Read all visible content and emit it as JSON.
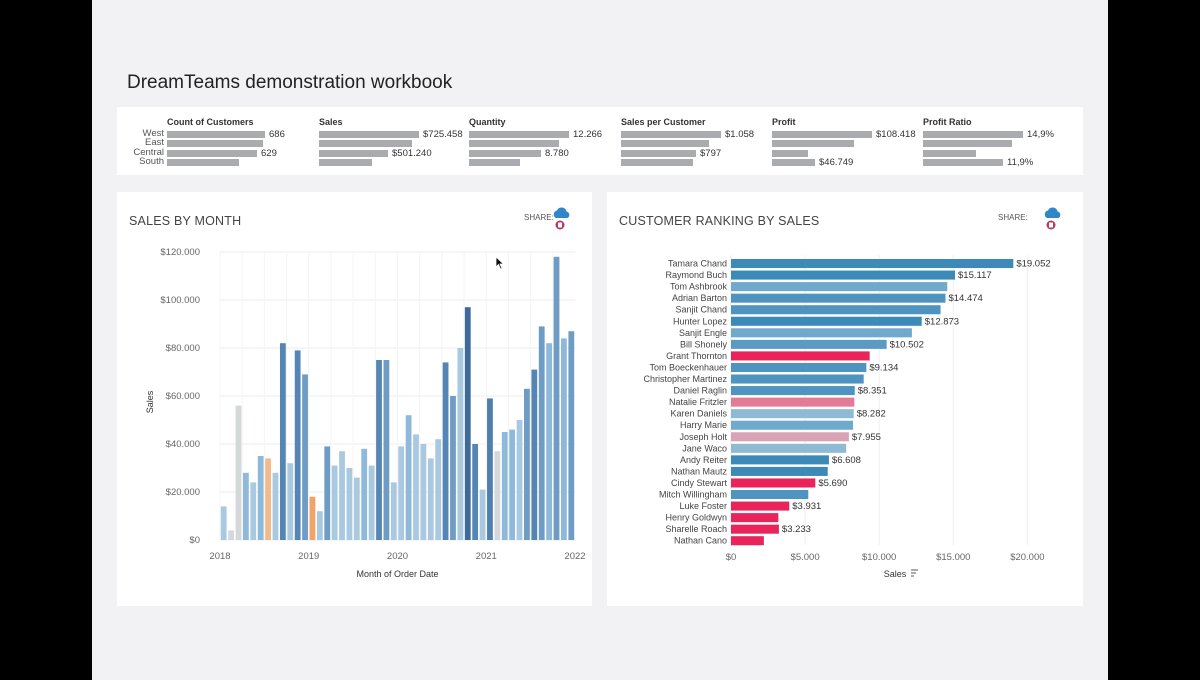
{
  "title": "DreamTeams demonstration workbook",
  "kpis": [
    {
      "title": "Count of Customers",
      "rows": [
        {
          "frac": 0.98,
          "label": "686"
        },
        {
          "frac": 0.96,
          "label": ""
        },
        {
          "frac": 0.9,
          "label": "629"
        },
        {
          "frac": 0.72,
          "label": ""
        }
      ]
    },
    {
      "title": "Sales",
      "rows": [
        {
          "frac": 1.0,
          "label": "$725.458"
        },
        {
          "frac": 0.93,
          "label": ""
        },
        {
          "frac": 0.69,
          "label": "$501.240"
        },
        {
          "frac": 0.53,
          "label": ""
        }
      ]
    },
    {
      "title": "Quantity",
      "rows": [
        {
          "frac": 1.0,
          "label": "12.266"
        },
        {
          "frac": 0.9,
          "label": ""
        },
        {
          "frac": 0.72,
          "label": "8.780"
        },
        {
          "frac": 0.51,
          "label": ""
        }
      ]
    },
    {
      "title": "Sales per Customer",
      "rows": [
        {
          "frac": 1.0,
          "label": "$1.058"
        },
        {
          "frac": 0.88,
          "label": ""
        },
        {
          "frac": 0.75,
          "label": "$797"
        },
        {
          "frac": 0.72,
          "label": ""
        }
      ]
    },
    {
      "title": "Profit",
      "rows": [
        {
          "frac": 1.0,
          "label": "$108.418"
        },
        {
          "frac": 0.82,
          "label": ""
        },
        {
          "frac": 0.36,
          "label": ""
        },
        {
          "frac": 0.43,
          "label": "$46.749"
        }
      ]
    },
    {
      "title": "Profit Ratio",
      "rows": [
        {
          "frac": 1.0,
          "label": "14,9%"
        },
        {
          "frac": 0.89,
          "label": ""
        },
        {
          "frac": 0.53,
          "label": ""
        },
        {
          "frac": 0.8,
          "label": "11,9%"
        }
      ]
    }
  ],
  "regions": [
    "West",
    "East",
    "Central",
    "South"
  ],
  "left_panel": {
    "title": "SALES BY MONTH",
    "share": "SHARE:"
  },
  "right_panel": {
    "title": "CUSTOMER RANKING BY SALES",
    "share": "SHARE:"
  },
  "chart_data": [
    {
      "type": "bar",
      "title": "SALES BY MONTH",
      "xlabel": "Month of Order Date",
      "ylabel": "Sales",
      "ylim": [
        0,
        120000
      ],
      "yticks": [
        {
          "v": 0,
          "label": "$0"
        },
        {
          "v": 20000,
          "label": "$20.000"
        },
        {
          "v": 40000,
          "label": "$40.000"
        },
        {
          "v": 60000,
          "label": "$60.000"
        },
        {
          "v": 80000,
          "label": "$80.000"
        },
        {
          "v": 100000,
          "label": "$100.000"
        },
        {
          "v": 120000,
          "label": "$120.000"
        }
      ],
      "xticks": [
        {
          "v": 0,
          "label": "2018"
        },
        {
          "v": 12,
          "label": "2019"
        },
        {
          "v": 24,
          "label": "2020"
        },
        {
          "v": 36,
          "label": "2021"
        },
        {
          "v": 48,
          "label": "2022"
        }
      ],
      "grid": true,
      "values": [
        14000,
        4000,
        56000,
        28000,
        24000,
        35000,
        34000,
        28000,
        82000,
        32000,
        79000,
        69000,
        18000,
        12000,
        39000,
        31000,
        37000,
        30000,
        26000,
        38000,
        31000,
        75000,
        75000,
        24000,
        39000,
        52000,
        44000,
        40000,
        34000,
        42000,
        74000,
        60000,
        80000,
        97000,
        40000,
        21000,
        59000,
        37000,
        45000,
        46000,
        50000,
        63000,
        71000,
        89000,
        82000,
        118000,
        84000,
        87000
      ],
      "colors": [
        "#a9c9e1",
        "#d4d8db",
        "#d4d8db",
        "#8eb9db",
        "#a9c9e1",
        "#8eb9db",
        "#f2b98b",
        "#a9c9e1",
        "#5585b5",
        "#a9c9e1",
        "#5585b5",
        "#6f9cc5",
        "#f2a468",
        "#a9c9e1",
        "#6f9cc5",
        "#a9c9e1",
        "#a9c9e1",
        "#a9c9e1",
        "#a9c9e1",
        "#8eb9db",
        "#a9c9e1",
        "#5585b5",
        "#6f9cc5",
        "#a9c9e1",
        "#a9c9e1",
        "#8eb9db",
        "#a9c9e1",
        "#a9c9e1",
        "#a9c9e1",
        "#a9c9e1",
        "#5585b5",
        "#6f9cc5",
        "#a9c9e1",
        "#3d6a99",
        "#5585b5",
        "#a9c9e1",
        "#4f7fae",
        "#d4d8db",
        "#8eb9db",
        "#8eb9db",
        "#a9c9e1",
        "#6f9cc5",
        "#5585b5",
        "#6f9cc5",
        "#8eb9db",
        "#6f9cc5",
        "#8eb9db",
        "#6f9cc5"
      ]
    },
    {
      "type": "bar",
      "orientation": "horizontal",
      "title": "CUSTOMER RANKING BY SALES",
      "xlabel": "Sales",
      "xlim": [
        0,
        22000
      ],
      "xticks": [
        {
          "v": 0,
          "label": "$0"
        },
        {
          "v": 5000,
          "label": "$5.000"
        },
        {
          "v": 10000,
          "label": "$10.000"
        },
        {
          "v": 15000,
          "label": "$15.000"
        },
        {
          "v": 20000,
          "label": "$20.000"
        }
      ],
      "categories": [
        "Tamara Chand",
        "Raymond Buch",
        "Tom Ashbrook",
        "Adrian Barton",
        "Sanjit Chand",
        "Hunter Lopez",
        "Sanjit Engle",
        "Bill Shonely",
        "Grant Thornton",
        "Tom Boeckenhauer",
        "Christopher Martinez",
        "Daniel Raglin",
        "Natalie Fritzler",
        "Karen Daniels",
        "Harry Marie",
        "Joseph Holt",
        "Jane Waco",
        "Andy Reiter",
        "Nathan Mautz",
        "Cindy Stewart",
        "Mitch Willingham",
        "Luke Foster",
        "Henry Goldwyn",
        "Sharelle Roach",
        "Nathan Cano"
      ],
      "values": [
        19052,
        15117,
        14595,
        14474,
        14142,
        12873,
        12209,
        10502,
        9357,
        9134,
        8954,
        8351,
        8322,
        8282,
        8237,
        7955,
        7773,
        6608,
        6526,
        5690,
        5217,
        3931,
        3195,
        3233,
        2218
      ],
      "labels": [
        "$19.052",
        "$15.117",
        "",
        "$14.474",
        "",
        "$12.873",
        "",
        "$10.502",
        "",
        "$9.134",
        "",
        "$8.351",
        "",
        "$8.282",
        "",
        "$7.955",
        "",
        "$6.608",
        "",
        "$5.690",
        "",
        "$3.931",
        "",
        "$3.233",
        ""
      ],
      "colors": [
        "#3d8ab8",
        "#3d8ab8",
        "#6fa9cc",
        "#4f93c0",
        "#4f93c0",
        "#3d8ab8",
        "#6fa9cc",
        "#5a9bc6",
        "#e8245b",
        "#4f93c0",
        "#4f93c0",
        "#4f93c0",
        "#e37a98",
        "#8fbad4",
        "#6fa9cc",
        "#d9a3b6",
        "#8fbad4",
        "#3d8ab8",
        "#3d8ab8",
        "#e8245b",
        "#4f93c0",
        "#e8245b",
        "#e8245b",
        "#e8245b",
        "#e8245b"
      ]
    }
  ]
}
